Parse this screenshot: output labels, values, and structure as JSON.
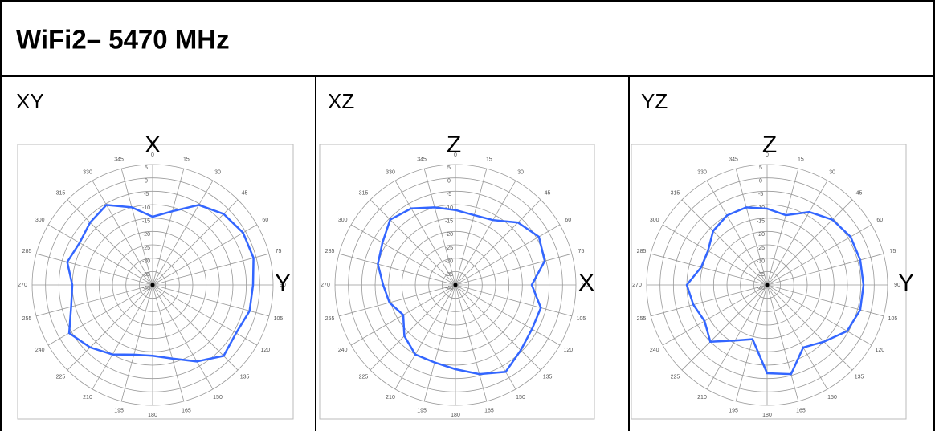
{
  "title": "WiFi2– 5470 MHz",
  "chart_data": [
    {
      "type": "polar",
      "panel": "XY",
      "top_label": "X",
      "right_label": "Y",
      "color": "#3366ff",
      "theta": [
        0,
        15,
        30,
        45,
        60,
        75,
        90,
        105,
        120,
        135,
        150,
        165,
        180,
        195,
        210,
        225,
        240,
        255,
        270,
        285,
        300,
        315,
        330,
        345
      ],
      "values": [
        -14.5,
        -11.5,
        -5.5,
        -2.5,
        -1,
        -1,
        -2.5,
        -2.5,
        -4,
        -2.5,
        -7,
        -11.5,
        -13.5,
        -13,
        -10,
        -7,
        -4,
        -8.5,
        -10,
        -7,
        -8.5,
        -7,
        -5.5,
        -10
      ],
      "rlim": [
        -40,
        5
      ],
      "rticks": [
        5,
        0,
        -5,
        -10,
        -15,
        -20,
        -25,
        -30,
        -35,
        -40
      ]
    },
    {
      "type": "polar",
      "panel": "XZ",
      "top_label": "Z",
      "right_label": "X",
      "color": "#3366ff",
      "theta": [
        0,
        15,
        30,
        45,
        60,
        75,
        90,
        105,
        120,
        135,
        150,
        165,
        180,
        195,
        210,
        225,
        240,
        255,
        270,
        285,
        300,
        315,
        330,
        345
      ],
      "values": [
        -12,
        -13,
        -12,
        -7,
        -4,
        -5.5,
        -11.5,
        -7,
        -7,
        -5.5,
        -2.5,
        -5.5,
        -8.5,
        -10,
        -10,
        -13,
        -17.5,
        -14.5,
        -13,
        -10,
        -8.5,
        -5.5,
        -7,
        -10
      ],
      "rlim": [
        -40,
        5
      ],
      "rticks": [
        5,
        0,
        -5,
        -10,
        -15,
        -20,
        -25,
        -30,
        -35,
        -40
      ]
    },
    {
      "type": "polar",
      "panel": "YZ",
      "top_label": "Z",
      "right_label": "Y",
      "color": "#3366ff",
      "theta": [
        0,
        15,
        30,
        45,
        60,
        75,
        90,
        105,
        120,
        135,
        150,
        165,
        180,
        195,
        210,
        225,
        240,
        255,
        270,
        285,
        300,
        315,
        330,
        345
      ],
      "values": [
        -11.5,
        -13,
        -8.5,
        -5.5,
        -4,
        -4,
        -4,
        -4,
        -5.5,
        -10,
        -13,
        -5.5,
        -7,
        -19,
        -16,
        -10,
        -13,
        -11.5,
        -10,
        -14.5,
        -14.5,
        -11.5,
        -10,
        -10
      ],
      "rlim": [
        -40,
        5
      ],
      "rticks": [
        5,
        0,
        -5,
        -10,
        -15,
        -20,
        -25,
        -30,
        -35,
        -40
      ]
    }
  ]
}
